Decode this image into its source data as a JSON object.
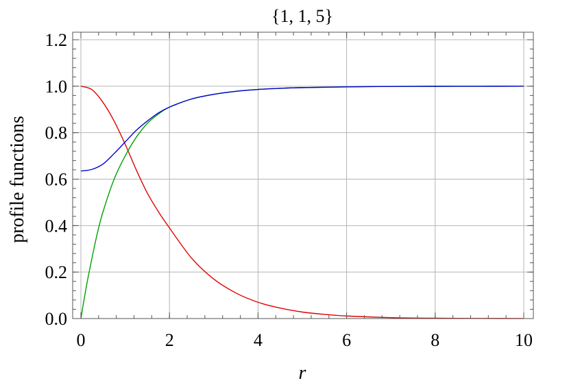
{
  "chart_data": {
    "type": "line",
    "title": "{1, 1, 5}",
    "xlabel": "r",
    "ylabel": "profile functions",
    "xlim": [
      0,
      10
    ],
    "ylim": [
      0,
      1.2
    ],
    "xticks": [
      "0",
      "2",
      "4",
      "6",
      "8",
      "10"
    ],
    "yticks": [
      "0.0",
      "0.2",
      "0.4",
      "0.6",
      "0.8",
      "1.0",
      "1.2"
    ],
    "grid": true,
    "series": [
      {
        "color": "#e00000",
        "x": [
          0,
          0.25,
          0.5,
          0.75,
          1.0,
          1.25,
          1.5,
          1.75,
          2.0,
          2.5,
          3.0,
          3.5,
          4.0,
          4.5,
          5.0,
          5.5,
          6.0,
          7.0,
          8.0,
          9.0,
          10.0
        ],
        "y": [
          1.0,
          0.985,
          0.93,
          0.85,
          0.75,
          0.64,
          0.54,
          0.46,
          0.39,
          0.26,
          0.17,
          0.11,
          0.07,
          0.045,
          0.028,
          0.018,
          0.011,
          0.004,
          0.0015,
          0.0005,
          0.0002
        ]
      },
      {
        "color": "#00a000",
        "x": [
          0,
          0.125,
          0.25,
          0.375,
          0.5,
          0.75,
          1.0,
          1.25,
          1.5,
          1.75,
          2.0,
          2.5,
          3.0,
          3.5,
          4.0,
          4.5,
          5.0,
          6.0,
          7.0,
          8.0,
          9.0,
          10.0
        ],
        "y": [
          0.0,
          0.14,
          0.26,
          0.37,
          0.46,
          0.6,
          0.7,
          0.78,
          0.84,
          0.88,
          0.91,
          0.945,
          0.965,
          0.978,
          0.986,
          0.991,
          0.994,
          0.997,
          0.999,
          0.9995,
          0.9998,
          1.0
        ]
      },
      {
        "color": "#0000d0",
        "x": [
          0,
          0.25,
          0.5,
          0.75,
          1.0,
          1.25,
          1.5,
          1.75,
          2.0,
          2.5,
          3.0,
          3.5,
          4.0,
          4.5,
          5.0,
          6.0,
          7.0,
          8.0,
          9.0,
          10.0
        ],
        "y": [
          0.635,
          0.642,
          0.665,
          0.71,
          0.76,
          0.81,
          0.85,
          0.885,
          0.91,
          0.945,
          0.965,
          0.978,
          0.986,
          0.991,
          0.994,
          0.997,
          0.999,
          0.9995,
          0.9998,
          1.0
        ]
      }
    ]
  }
}
